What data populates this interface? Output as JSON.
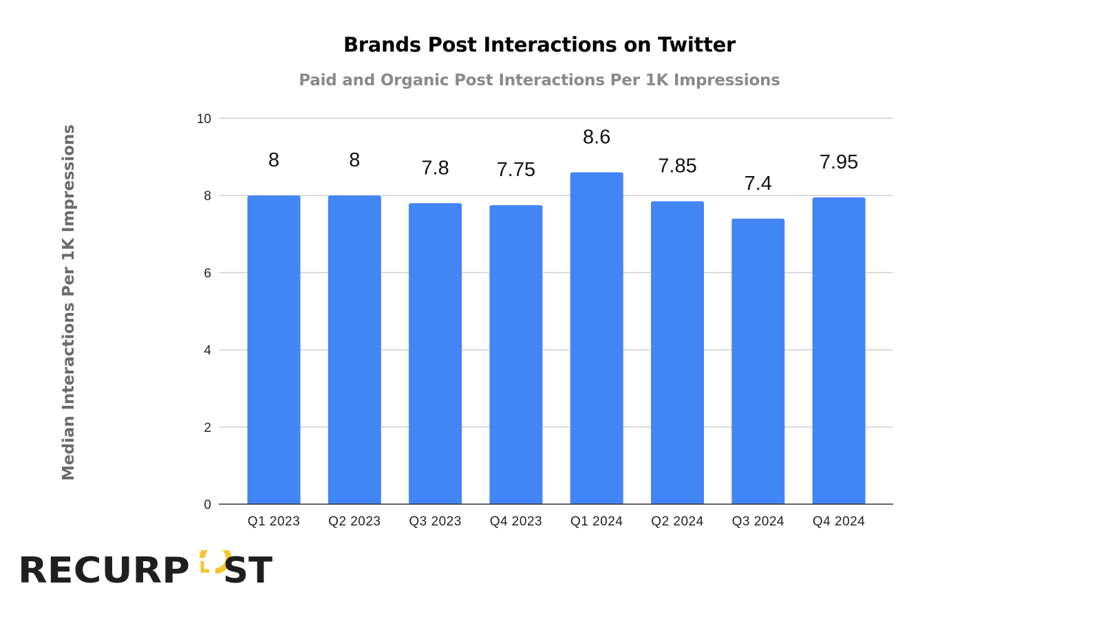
{
  "chart_data": {
    "type": "bar",
    "title": "Brands Post Interactions on Twitter",
    "subtitle": "Paid and Organic Post Interactions Per 1K Impressions",
    "xlabel": "",
    "ylabel": "Median Interactions Per 1K Impressions",
    "categories": [
      "Q1 2023",
      "Q2 2023",
      "Q3 2023",
      "Q4 2023",
      "Q1 2024",
      "Q2 2024",
      "Q3 2024",
      "Q4 2024"
    ],
    "values": [
      8,
      8,
      7.8,
      7.75,
      8.6,
      7.85,
      7.4,
      7.95
    ],
    "data_labels": [
      "8",
      "8",
      "7.8",
      "7.75",
      "8.6",
      "7.85",
      "7.4",
      "7.95"
    ],
    "ylim": [
      0,
      10
    ],
    "yticks": [
      0,
      2,
      4,
      6,
      8,
      10
    ],
    "grid": true,
    "legend": "none",
    "bar_color": "#4285f4"
  },
  "logo": {
    "text": "RECURPOST",
    "colors": {
      "dark": "#1f1f1f",
      "accent": "#f7c531"
    }
  }
}
